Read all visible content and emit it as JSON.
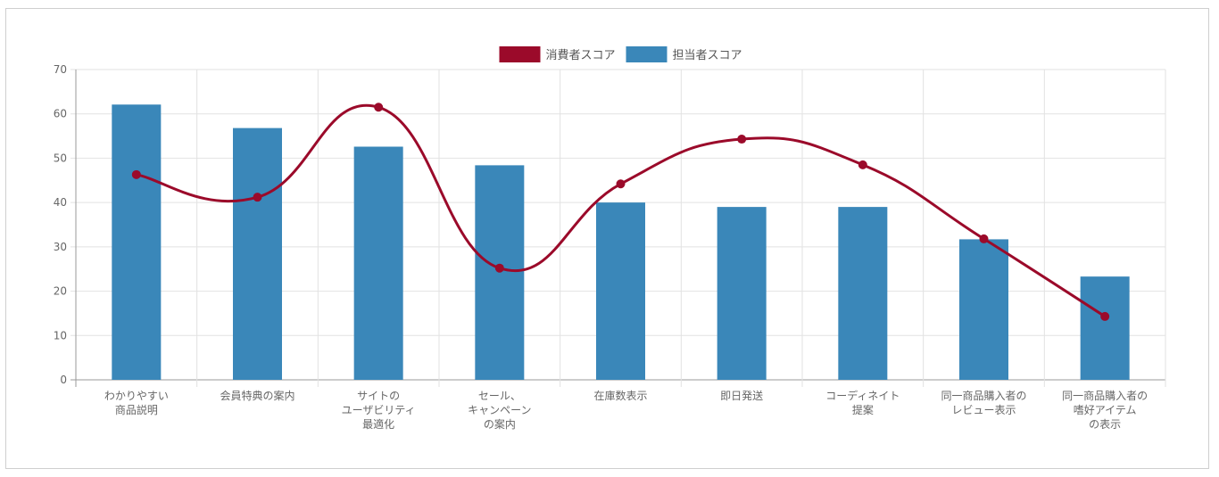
{
  "chart_data": {
    "type": "bar",
    "categories": [
      [
        "わかりやすい",
        "商品説明"
      ],
      [
        "会員特典の案内"
      ],
      [
        "サイトの",
        "ユーザビリティ",
        "最適化"
      ],
      [
        "セール、",
        "キャンペーン",
        "の案内"
      ],
      [
        "在庫数表示"
      ],
      [
        "即日発送"
      ],
      [
        "コーディネイト",
        "提案"
      ],
      [
        "同一商品購入者の",
        "レビュー表示"
      ],
      [
        "同一商品購入者の",
        "嗜好アイテム",
        "の表示"
      ]
    ],
    "series": [
      {
        "name": "消費者スコア",
        "type": "line",
        "color": "#9b0a2a",
        "values": [
          46.3,
          41.2,
          61.5,
          25.2,
          44.2,
          54.3,
          48.5,
          31.8,
          14.3
        ]
      },
      {
        "name": "担当者スコア",
        "type": "bar",
        "color": "#3a87b9",
        "values": [
          62.1,
          56.8,
          52.6,
          48.4,
          40.0,
          39.0,
          39.0,
          31.7,
          23.3
        ]
      }
    ],
    "ylim": [
      0,
      70
    ],
    "yticks": [
      0,
      10,
      20,
      30,
      40,
      50,
      60,
      70
    ],
    "grid": true,
    "legend": "top-center",
    "title": "",
    "xlabel": "",
    "ylabel": ""
  }
}
